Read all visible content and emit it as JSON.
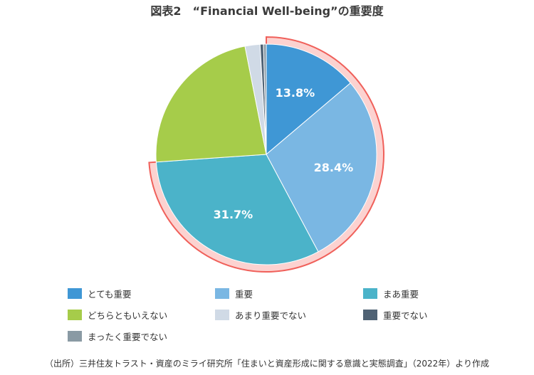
{
  "chart_data": {
    "type": "pie",
    "title": "図表2　“Financial Well-being”の重要度",
    "categories": [
      "とても重要",
      "重要",
      "まあ重要",
      "どちらともいえない",
      "あまり重要でない",
      "重要でない",
      "まったく重要でない"
    ],
    "values": [
      13.8,
      28.4,
      31.7,
      23.0,
      2.2,
      0.5,
      0.4
    ],
    "data_labels": [
      "13.8%",
      "28.4%",
      "31.7%",
      "",
      "",
      "",
      ""
    ],
    "colors": [
      "#3f97d5",
      "#7ab7e3",
      "#4bb3c9",
      "#a6cc4a",
      "#d0dae6",
      "#4f6274",
      "#8a9aa4"
    ],
    "highlight": {
      "slices": [
        "とても重要",
        "重要",
        "まあ重要"
      ],
      "stroke": "#f0605a",
      "fill": "#fcd2d0"
    },
    "legend_placement": "bottom"
  },
  "source": "（出所）三井住友トラスト・資産のミライ研究所「住まいと資産形成に関する意識と実態調査」（2022年）より作成"
}
